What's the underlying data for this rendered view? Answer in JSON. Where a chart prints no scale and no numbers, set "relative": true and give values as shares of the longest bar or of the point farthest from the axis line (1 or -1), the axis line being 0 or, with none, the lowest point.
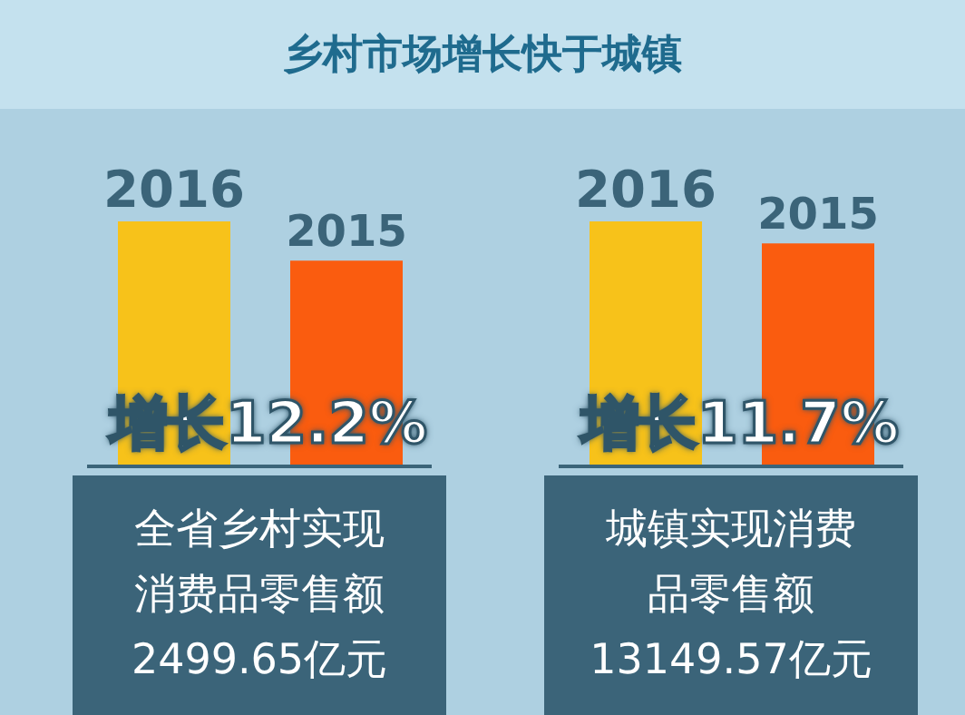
{
  "chart_data": [
    {
      "type": "bar",
      "title": "乡村市场增长快于城镇",
      "categories": [
        "2016",
        "2015"
      ],
      "values": [
        1,
        0.84
      ],
      "colors": [
        "#f7c21a",
        "#fa5c0f"
      ],
      "relative": true,
      "annotations": [
        "增长12.2%",
        "全省乡村实现消费品零售额2499.65亿元"
      ]
    },
    {
      "type": "bar",
      "categories": [
        "2016",
        "2015"
      ],
      "values": [
        1,
        0.91
      ],
      "colors": [
        "#f7c21a",
        "#fa5c0f"
      ],
      "relative": true,
      "annotations": [
        "增长11.7%",
        "城镇实现消费品零售额13149.57亿元"
      ]
    }
  ]
}
